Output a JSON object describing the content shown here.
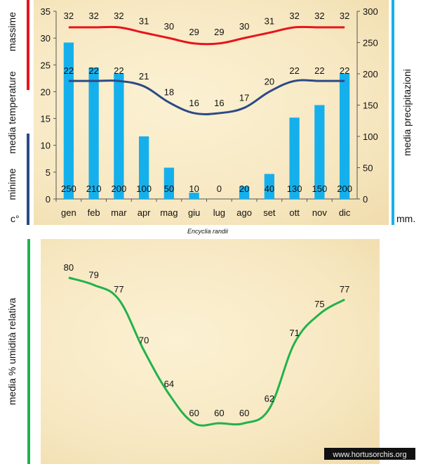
{
  "chart_data": [
    {
      "type": "bar+line",
      "title": "Encyclia randii",
      "categories": [
        "gen",
        "feb",
        "mar",
        "apr",
        "mag",
        "giu",
        "lug",
        "ago",
        "set",
        "ott",
        "nov",
        "dic"
      ],
      "series": [
        {
          "name": "massime",
          "axis": "left",
          "kind": "line",
          "color": "#e8141c",
          "values": [
            32,
            32,
            32,
            31,
            30,
            29,
            29,
            30,
            31,
            32,
            32,
            32
          ]
        },
        {
          "name": "minime",
          "axis": "left",
          "kind": "line",
          "color": "#2d4a86",
          "values": [
            22,
            22,
            22,
            21,
            18,
            16,
            16,
            17,
            20,
            22,
            22,
            22
          ]
        },
        {
          "name": "media precipitazioni",
          "axis": "right",
          "kind": "bar",
          "color": "#15b0ec",
          "values": [
            250,
            210,
            200,
            100,
            50,
            10,
            0,
            20,
            40,
            130,
            150,
            200
          ]
        }
      ],
      "y_left": {
        "range": [
          0,
          35
        ],
        "ticks": [
          0,
          5,
          10,
          15,
          20,
          25,
          30,
          35
        ],
        "label": "media temperature",
        "unit": "c°",
        "max_label": "massime",
        "min_label": "minime"
      },
      "y_right": {
        "range": [
          0,
          300
        ],
        "ticks": [
          0,
          50,
          100,
          150,
          200,
          250,
          300
        ],
        "label": "media precipitazioni",
        "unit": "mm."
      }
    },
    {
      "type": "line",
      "categories": [
        "gen",
        "feb",
        "mar",
        "apr",
        "mag",
        "giu",
        "lug",
        "ago",
        "set",
        "ott",
        "nov",
        "dic"
      ],
      "series": [
        {
          "name": "media % umidità relativa",
          "color": "#22b24c",
          "values": [
            80,
            79,
            77,
            70,
            64,
            60,
            60,
            60,
            62,
            71,
            75,
            77
          ]
        }
      ],
      "ylabel": "media %  umidità relativa"
    }
  ],
  "watermark": "www.hortusorchis.org"
}
